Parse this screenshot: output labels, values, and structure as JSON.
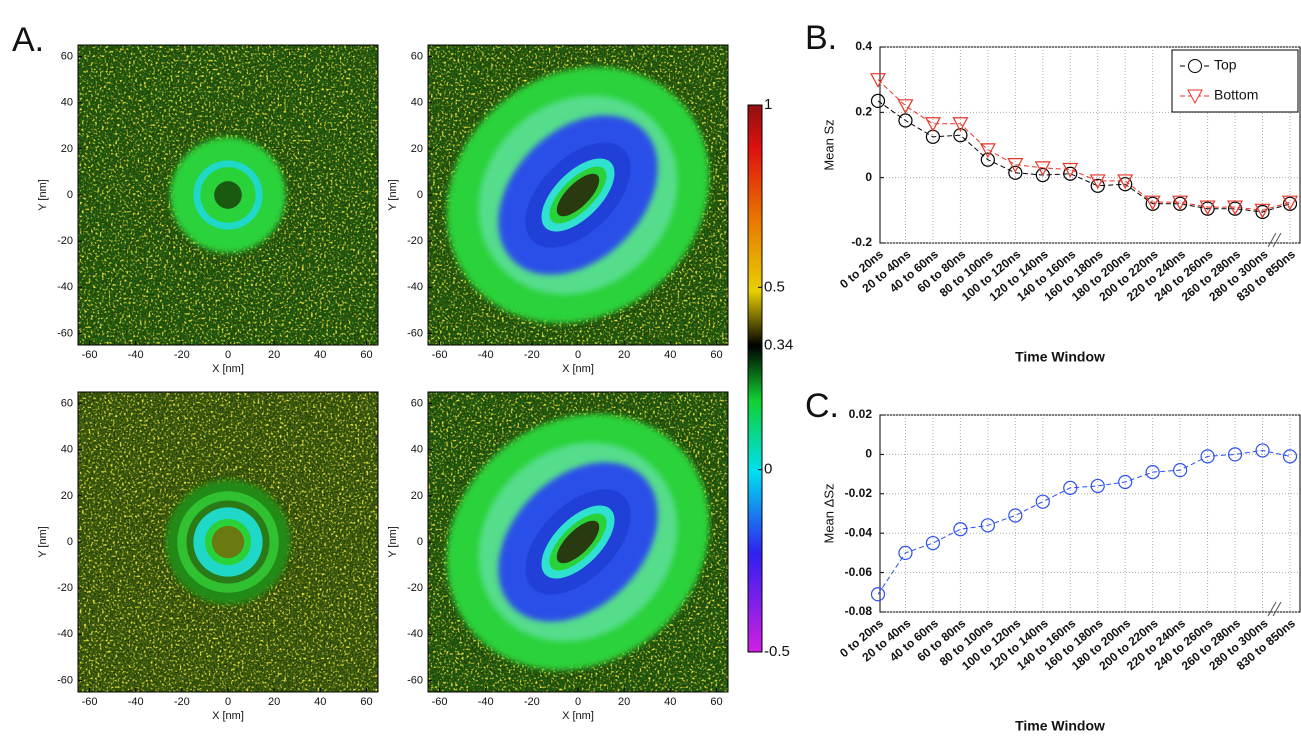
{
  "chart_data": [
    {
      "type": "heatmap",
      "panel": "A.",
      "xlabel": "X [nm]",
      "ylabel": "Y [nm]",
      "xlim": [
        -65,
        65
      ],
      "ylim": [
        -65,
        65
      ],
      "xticks": [
        -60,
        -40,
        -20,
        0,
        20,
        40,
        60
      ],
      "yticks": [
        -60,
        -40,
        -20,
        0,
        20,
        40,
        60
      ]
    },
    {
      "type": "heatmap",
      "xlabel": "X [nm]",
      "ylabel": "Y [nm]",
      "xlim": [
        -65,
        65
      ],
      "ylim": [
        -65,
        65
      ],
      "xticks": [
        -60,
        -40,
        -20,
        0,
        20,
        40,
        60
      ],
      "yticks": [
        -60,
        -40,
        -20,
        0,
        20,
        40,
        60
      ],
      "colorbar": {
        "lim": [
          -0.5,
          1
        ],
        "ticks": [
          1,
          0.5,
          0.34,
          0,
          -0.5
        ]
      }
    },
    {
      "type": "heatmap",
      "xlabel": "X [nm]",
      "ylabel": "Y [nm]",
      "xlim": [
        -65,
        65
      ],
      "ylim": [
        -65,
        65
      ],
      "xticks": [
        -60,
        -40,
        -20,
        0,
        20,
        40,
        60
      ],
      "yticks": [
        -60,
        -40,
        -20,
        0,
        20,
        40,
        60
      ]
    },
    {
      "type": "heatmap",
      "xlabel": "X [nm]",
      "ylabel": "Y [nm]",
      "xlim": [
        -65,
        65
      ],
      "ylim": [
        -65,
        65
      ],
      "xticks": [
        -60,
        -40,
        -20,
        0,
        20,
        40,
        60
      ],
      "yticks": [
        -60,
        -40,
        -20,
        0,
        20,
        40,
        60
      ]
    },
    {
      "type": "line",
      "panel": "B.",
      "xlabel": "Time Window",
      "ylabel": "Mean Sz",
      "grid": true,
      "legend": "upper right",
      "categories": [
        "0 to 20ns",
        "20 to 40ns",
        "40 to 60ns",
        "60 to 80ns",
        "80 to 100ns",
        "100 to 120ns",
        "120 to 140ns",
        "140 to 160ns",
        "160 to 180ns",
        "180 to 200ns",
        "200 to 220ns",
        "220 to 240ns",
        "240 to 260ns",
        "260 to 280ns",
        "280 to 300ns",
        "830 to 850ns"
      ],
      "ylim": [
        -0.2,
        0.4
      ],
      "yticks": [
        -0.2,
        0,
        0.2,
        0.4
      ],
      "series": [
        {
          "name": "Top",
          "color": "#000000",
          "marker": "circle",
          "values": [
            0.235,
            0.175,
            0.125,
            0.13,
            0.055,
            0.015,
            0.008,
            0.012,
            -0.025,
            -0.02,
            -0.08,
            -0.08,
            -0.095,
            -0.095,
            -0.105,
            -0.08
          ]
        },
        {
          "name": "Bottom",
          "color": "#e8352a",
          "marker": "triangle",
          "values": [
            0.3,
            0.22,
            0.165,
            0.165,
            0.085,
            0.04,
            0.03,
            0.025,
            -0.01,
            -0.01,
            -0.075,
            -0.075,
            -0.09,
            -0.09,
            -0.1,
            -0.075
          ]
        }
      ]
    },
    {
      "type": "line",
      "panel": "C.",
      "xlabel": "Time Window",
      "ylabel": "Mean ΔSz",
      "grid": true,
      "categories": [
        "0 to 20ns",
        "20 to 40ns",
        "40 to 60ns",
        "60 to 80ns",
        "80 to 100ns",
        "100 to 120ns",
        "120 to 140ns",
        "140 to 160ns",
        "160 to 180ns",
        "180 to 200ns",
        "200 to 220ns",
        "220 to 240ns",
        "240 to 260ns",
        "260 to 280ns",
        "280 to 300ns",
        "830 to 850ns"
      ],
      "ylim": [
        -0.08,
        0.02
      ],
      "yticks": [
        -0.08,
        -0.06,
        -0.04,
        -0.02,
        0,
        0.02
      ],
      "series": [
        {
          "color": "#2b4ff0",
          "marker": "circle",
          "values": [
            -0.071,
            -0.05,
            -0.045,
            -0.038,
            -0.036,
            -0.031,
            -0.024,
            -0.017,
            -0.016,
            -0.014,
            -0.009,
            -0.008,
            -0.001,
            0,
            0.002,
            -0.001
          ]
        }
      ]
    }
  ]
}
